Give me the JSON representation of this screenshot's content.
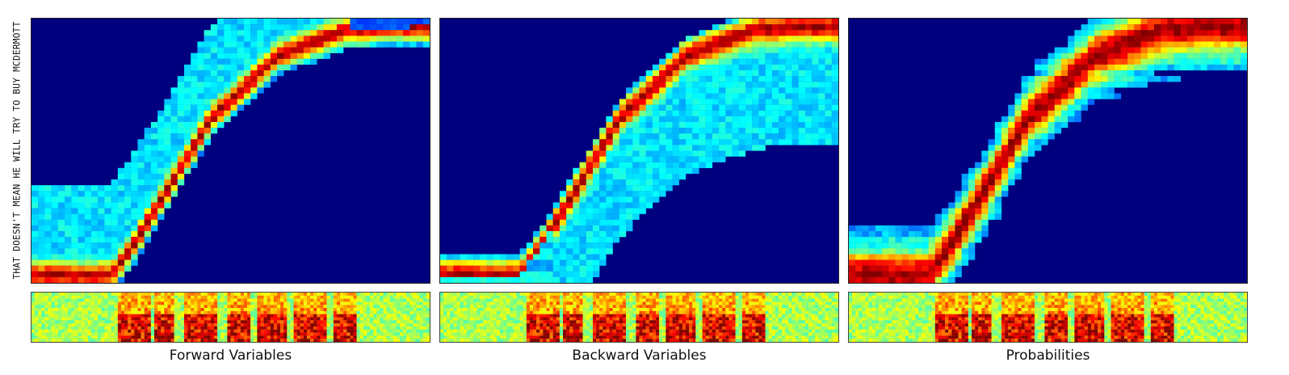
{
  "figure": {
    "ylabel": "THAT DOESN'T MEAN HE WILL TRY TO BUY MCDERMOTT"
  },
  "chart_data": [
    {
      "type": "heatmap",
      "title": "Forward Variables",
      "mode": "forward",
      "x_range": [
        0,
        1
      ],
      "y_range": [
        0,
        1
      ],
      "colormap": "jet",
      "colors": {
        "low": "#00007f",
        "high": "#7f0000"
      }
    },
    {
      "type": "heatmap",
      "title": "Backward Variables",
      "mode": "backward",
      "x_range": [
        0,
        1
      ],
      "y_range": [
        0,
        1
      ],
      "colormap": "jet",
      "colors": {
        "low": "#00007f",
        "high": "#7f0000"
      }
    },
    {
      "type": "heatmap",
      "title": "Probabilities",
      "mode": "posterior",
      "x_range": [
        0,
        1
      ],
      "y_range": [
        0,
        1
      ],
      "colormap": "jet",
      "colors": {
        "low": "#00007f",
        "high": "#7f0000"
      }
    }
  ]
}
